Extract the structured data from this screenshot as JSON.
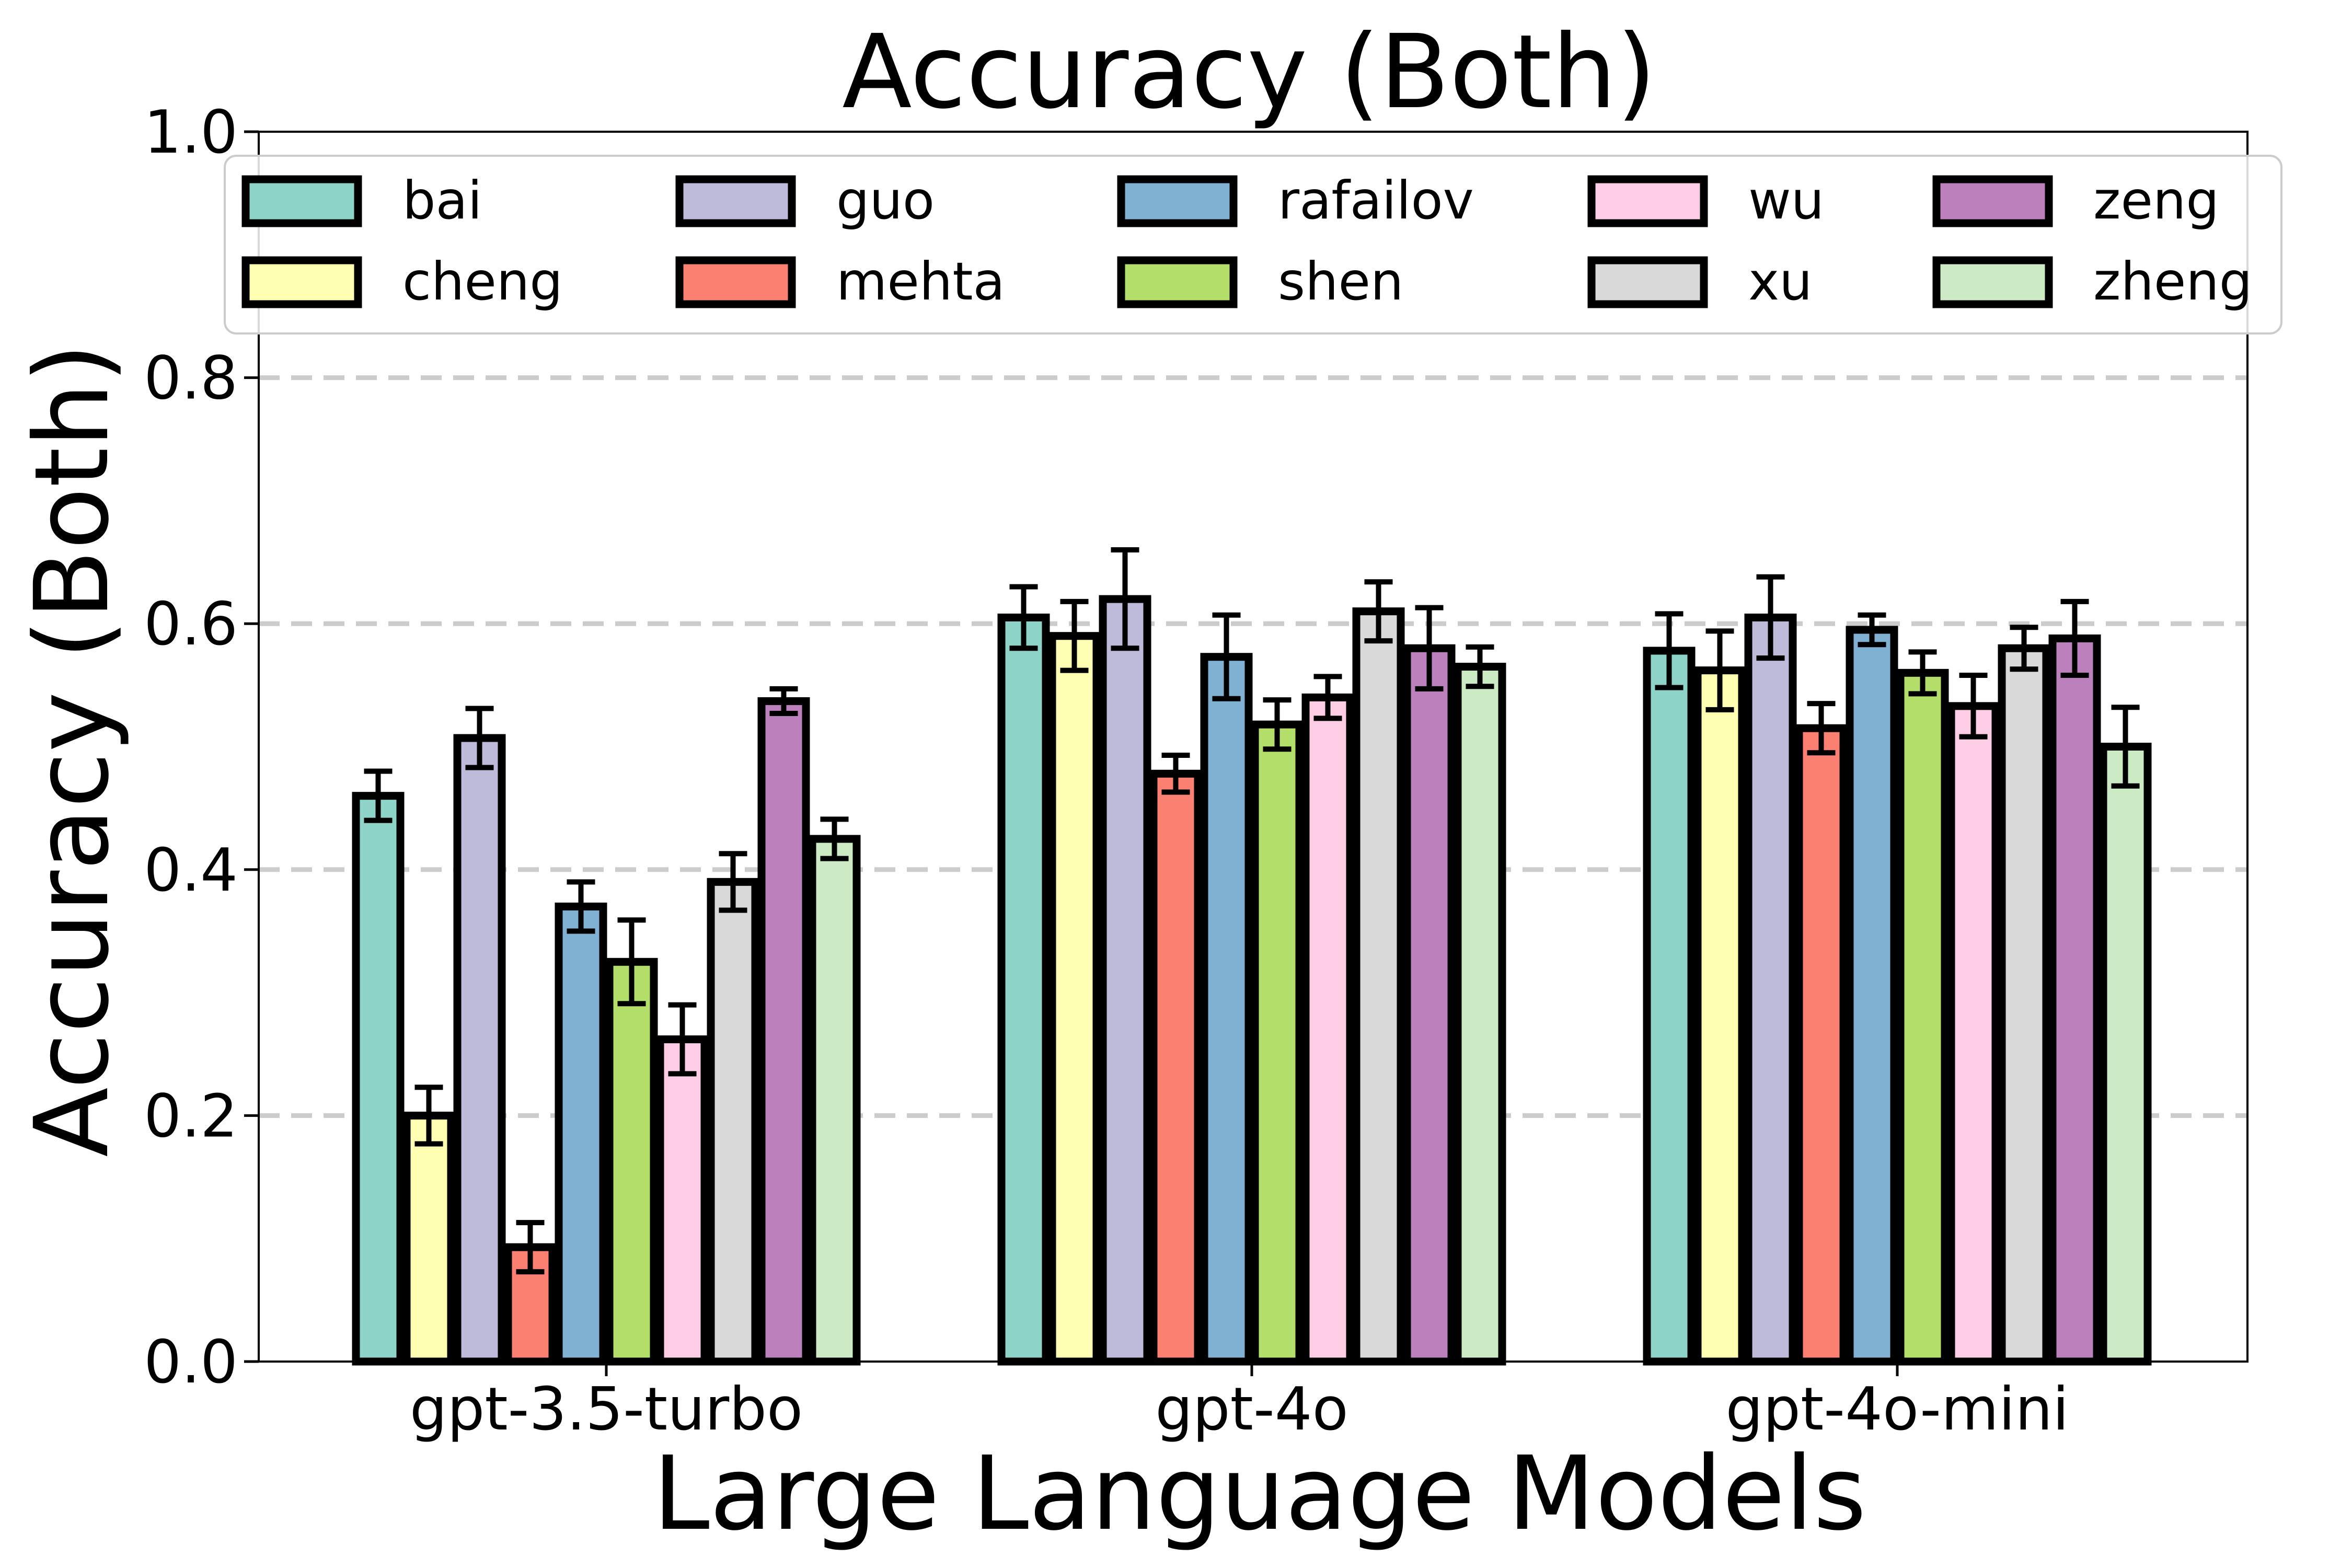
{
  "chart_data": {
    "type": "bar",
    "title": "Accuracy (Both)",
    "xlabel": "Large Language Models",
    "ylabel": "Accuracy (Both)",
    "ylim": [
      0,
      1.0
    ],
    "yticks": [
      "0.0",
      "0.2",
      "0.4",
      "0.6",
      "0.8",
      "1.0"
    ],
    "grid": "horizontal dashed",
    "legend_position": "top",
    "categories": [
      "gpt-3.5-turbo",
      "gpt-4o",
      "gpt-4o-mini"
    ],
    "series": [
      {
        "name": "bai",
        "color": "#8dd3c7",
        "values": [
          0.46,
          0.605,
          0.578
        ],
        "errors": [
          0.02,
          0.025,
          0.03
        ]
      },
      {
        "name": "cheng",
        "color": "#ffffb3",
        "values": [
          0.2,
          0.59,
          0.562
        ],
        "errors": [
          0.023,
          0.028,
          0.032
        ]
      },
      {
        "name": "guo",
        "color": "#bebada",
        "values": [
          0.507,
          0.62,
          0.605
        ],
        "errors": [
          0.024,
          0.04,
          0.033
        ]
      },
      {
        "name": "mehta",
        "color": "#fb8072",
        "values": [
          0.093,
          0.478,
          0.515
        ],
        "errors": [
          0.02,
          0.015,
          0.02
        ]
      },
      {
        "name": "rafailov",
        "color": "#80b1d3",
        "values": [
          0.37,
          0.573,
          0.595
        ],
        "errors": [
          0.02,
          0.034,
          0.012
        ]
      },
      {
        "name": "shen",
        "color": "#b3de69",
        "values": [
          0.325,
          0.518,
          0.56
        ],
        "errors": [
          0.034,
          0.02,
          0.017
        ]
      },
      {
        "name": "wu",
        "color": "#fccde5",
        "values": [
          0.262,
          0.54,
          0.533
        ],
        "errors": [
          0.028,
          0.017,
          0.025
        ]
      },
      {
        "name": "xu",
        "color": "#d9d9d9",
        "values": [
          0.39,
          0.61,
          0.58
        ],
        "errors": [
          0.023,
          0.024,
          0.017
        ]
      },
      {
        "name": "zeng",
        "color": "#bc80bd",
        "values": [
          0.537,
          0.58,
          0.588
        ],
        "errors": [
          0.01,
          0.033,
          0.03
        ]
      },
      {
        "name": "zheng",
        "color": "#ccebc5",
        "values": [
          0.425,
          0.565,
          0.5
        ],
        "errors": [
          0.016,
          0.016,
          0.032
        ]
      }
    ]
  }
}
